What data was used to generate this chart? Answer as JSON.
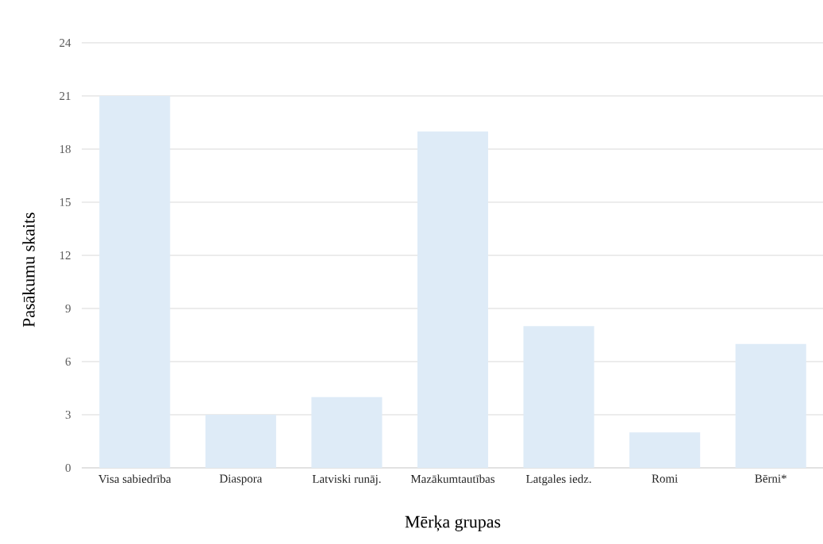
{
  "chart_data": {
    "type": "bar",
    "xlabel": "Mērķa grupas",
    "ylabel": "Pasākumu skaits",
    "categories": [
      "Visa sabiedrība",
      "Diaspora",
      "Latviski runāj.",
      "Mazākumtautības",
      "Latgales iedz.",
      "Romi",
      "Bērni*"
    ],
    "values": [
      21,
      3,
      4,
      19,
      8,
      2,
      7
    ],
    "color": "#deebf7",
    "ylim": [
      0,
      24
    ],
    "yticks": [
      0,
      3,
      6,
      9,
      12,
      15,
      18,
      21,
      24
    ],
    "grid": "y"
  }
}
